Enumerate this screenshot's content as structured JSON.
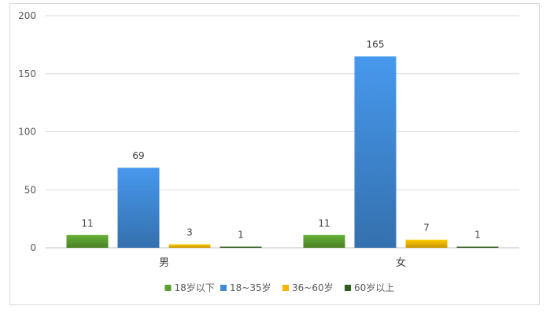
{
  "chart_data": {
    "type": "bar",
    "title": "",
    "xlabel": "",
    "ylabel": "",
    "categories": [
      "男",
      "女"
    ],
    "ylim": [
      0,
      200
    ],
    "yticks": [
      0,
      50,
      100,
      150,
      200
    ],
    "grid": true,
    "legend_position": "bottom",
    "data_labels": true,
    "series": [
      {
        "name": "18岁以下",
        "values": [
          11,
          11
        ],
        "color": "#5a9e2f"
      },
      {
        "name": "18~35岁",
        "values": [
          69,
          165
        ],
        "color": "#3f88d4"
      },
      {
        "name": "36~60岁",
        "values": [
          3,
          7
        ],
        "color": "#f2b600"
      },
      {
        "name": "60岁以上",
        "values": [
          1,
          1
        ],
        "color": "#2f5f1f"
      }
    ]
  }
}
